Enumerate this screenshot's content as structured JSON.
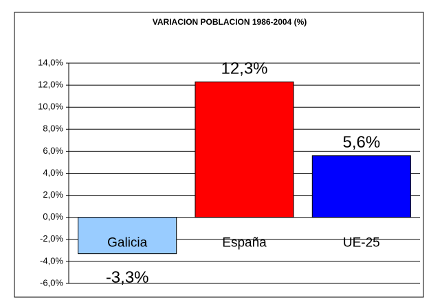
{
  "chart_data": {
    "type": "bar",
    "title": "VARIACION POBLACION 1986-2004 (%)",
    "categories": [
      "Galicia",
      "España",
      "UE-25"
    ],
    "values": [
      -3.3,
      12.3,
      5.6
    ],
    "value_labels": [
      "-3,3%",
      "12,3%",
      "5,6%"
    ],
    "colors": [
      "#99ccff",
      "#ff0000",
      "#0000ff"
    ],
    "ylim": [
      -6,
      14
    ],
    "yticks": [
      {
        "value": -6,
        "label": "-6,0%"
      },
      {
        "value": -4,
        "label": "-4,0%"
      },
      {
        "value": -2,
        "label": "-2,0%"
      },
      {
        "value": 0,
        "label": "0,0%"
      },
      {
        "value": 2,
        "label": "2,0%"
      },
      {
        "value": 4,
        "label": "4,0%"
      },
      {
        "value": 6,
        "label": "6,0%"
      },
      {
        "value": 8,
        "label": "8,0%"
      },
      {
        "value": 10,
        "label": "10,0%"
      },
      {
        "value": 12,
        "label": "12,0%"
      },
      {
        "value": 14,
        "label": "14,0%"
      }
    ],
    "grid": true
  }
}
